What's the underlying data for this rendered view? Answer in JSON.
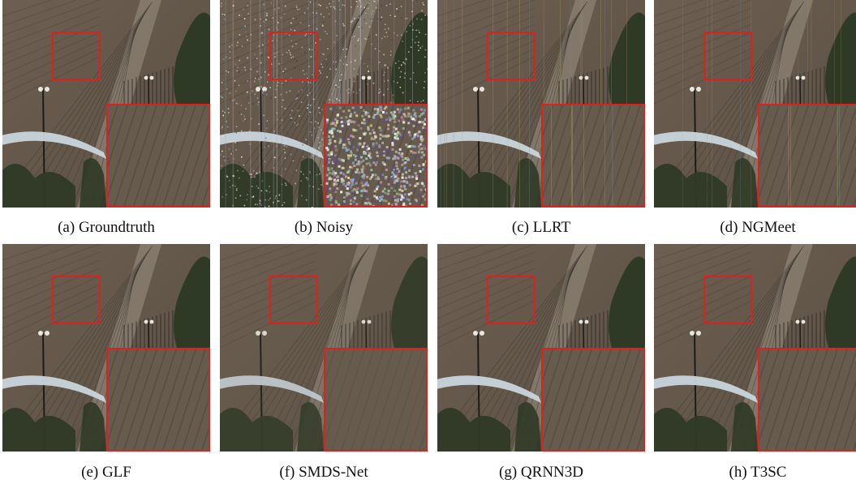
{
  "figure": {
    "panels": [
      {
        "caption": "(a) Groundtruth",
        "variant": "clean"
      },
      {
        "caption": "(b) Noisy",
        "variant": "noisy"
      },
      {
        "caption": "(c) LLRT",
        "variant": "stripes"
      },
      {
        "caption": "(d) NGMeet",
        "variant": "stripes-light"
      },
      {
        "caption": "(e) GLF",
        "variant": "clean"
      },
      {
        "caption": "(f) SMDS-Net",
        "variant": "smooth"
      },
      {
        "caption": "(g) QRNN3D",
        "variant": "clean"
      },
      {
        "caption": "(h) T3SC",
        "variant": "clean"
      }
    ],
    "colors": {
      "sky": "#6d5f51",
      "sky_dark": "#5a4f44",
      "highlight_box": "#e0201c",
      "arch": "#c9d6dc",
      "foliage": "#2f3a26"
    }
  }
}
